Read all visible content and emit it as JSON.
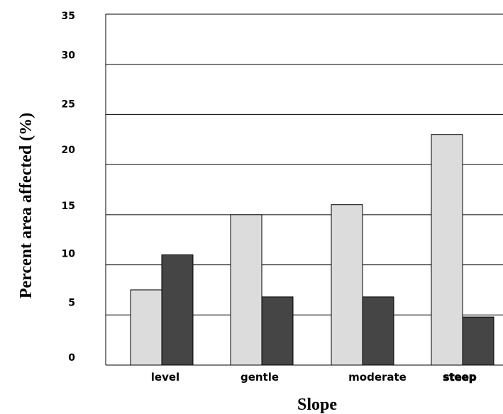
{
  "chart_data": {
    "type": "bar",
    "title": "",
    "xlabel": "Slope",
    "ylabel": "Percent area affected (%)",
    "ylim": [
      0,
      35
    ],
    "yticks": [
      0,
      5,
      10,
      15,
      20,
      25,
      30,
      35
    ],
    "categories": [
      "level",
      "gentle",
      "moderate",
      "steep"
    ],
    "series": [
      {
        "values": [
          7.5,
          15.0,
          16.0,
          23.0
        ],
        "color": "#dcdcdc"
      },
      {
        "values": [
          11.0,
          6.8,
          6.8,
          4.8
        ],
        "color": "#454545"
      }
    ],
    "grid": true,
    "legend": "none"
  }
}
